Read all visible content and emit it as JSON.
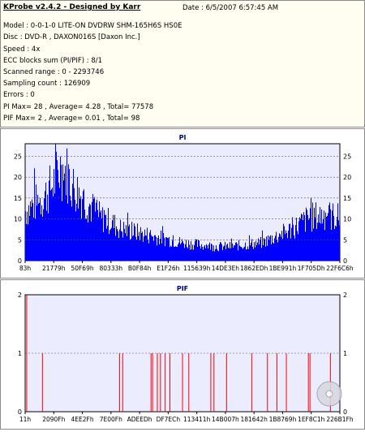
{
  "info": {
    "title": "KProbe v2.4.2 - Designed by Karr",
    "date": "Date : 6/5/2007 6:57:45 AM",
    "model": "Model : 0-0-1-0 LITE-ON DVDRW SHM-165H6S HS0E",
    "disc": "Disc : DVD-R , DAXON016S [Daxon Inc.]",
    "speed": "Speed : 4x",
    "ecc": "ECC blocks sum (PI/PIF) : 8/1",
    "range": "Scanned range : 0 - 2293746",
    "sampling": "Sampling count : 126909",
    "errors": "Errors : 0",
    "pi_summary": "PI Max= 28 , Average= 4.28 , Total= 77578",
    "pif_summary": "PIF Max= 2 , Average= 0.01 , Total= 98"
  },
  "colors": {
    "pi_bar": "#0000ff",
    "pif_bar": "#ff0000",
    "plot_bg": "#ececff",
    "title_text": "#000080"
  },
  "chart_data": [
    {
      "type": "bar",
      "title": "PI",
      "ylim": [
        0,
        28
      ],
      "yticks": [
        0,
        5,
        10,
        15,
        20,
        25
      ],
      "xticks": [
        "83h",
        "21779h",
        "50F69h",
        "80333h",
        "B0F84h",
        "E1F26h",
        "115639h",
        "14DE3Eh",
        "1862EDh",
        "1BE991h",
        "1F705Dh",
        "22F6C6h"
      ],
      "grid": true,
      "envelope": [
        [
          0,
          14
        ],
        [
          0.03,
          16
        ],
        [
          0.06,
          18
        ],
        [
          0.09,
          22
        ],
        [
          0.11,
          26
        ],
        [
          0.13,
          25
        ],
        [
          0.15,
          21
        ],
        [
          0.18,
          18
        ],
        [
          0.21,
          15
        ],
        [
          0.24,
          12
        ],
        [
          0.27,
          11
        ],
        [
          0.3,
          9
        ],
        [
          0.35,
          8
        ],
        [
          0.4,
          7
        ],
        [
          0.45,
          6
        ],
        [
          0.5,
          5
        ],
        [
          0.55,
          4.5
        ],
        [
          0.6,
          4
        ],
        [
          0.65,
          4
        ],
        [
          0.7,
          4.5
        ],
        [
          0.75,
          5
        ],
        [
          0.8,
          7
        ],
        [
          0.85,
          9
        ],
        [
          0.9,
          12
        ],
        [
          0.95,
          13
        ],
        [
          1,
          12
        ]
      ]
    },
    {
      "type": "bar",
      "title": "PIF",
      "ylim": [
        0,
        2
      ],
      "yticks": [
        0,
        1,
        2
      ],
      "xticks": [
        "11h",
        "2090Fh",
        "4EE2Fh",
        "7E00Fh",
        "ADEEDh",
        "DF7ECh",
        "113411h",
        "14B007h",
        "181642h",
        "1B8769h",
        "1EF8C1h",
        "226B1Fh"
      ],
      "grid": true,
      "bars": [
        [
          0.005,
          2
        ],
        [
          0.055,
          1
        ],
        [
          0.3,
          1
        ],
        [
          0.31,
          1
        ],
        [
          0.4,
          1
        ],
        [
          0.405,
          1
        ],
        [
          0.42,
          1
        ],
        [
          0.43,
          1
        ],
        [
          0.445,
          1
        ],
        [
          0.46,
          1
        ],
        [
          0.5,
          1
        ],
        [
          0.52,
          1
        ],
        [
          0.59,
          1
        ],
        [
          0.6,
          1
        ],
        [
          0.64,
          1
        ],
        [
          0.72,
          1
        ],
        [
          0.77,
          1
        ],
        [
          0.8,
          1
        ],
        [
          0.83,
          1
        ],
        [
          0.9,
          1
        ],
        [
          0.905,
          1
        ],
        [
          0.97,
          1
        ]
      ]
    }
  ]
}
